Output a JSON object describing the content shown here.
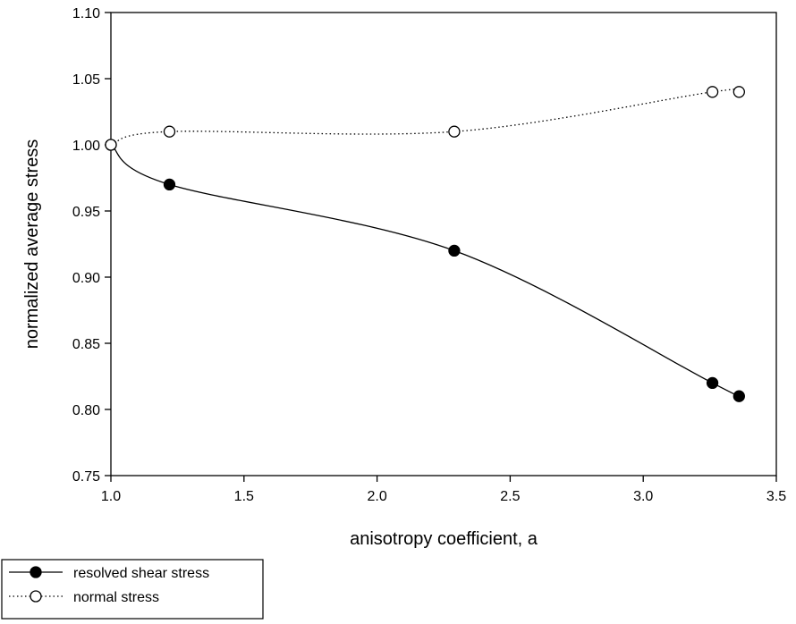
{
  "chart_data": {
    "type": "line",
    "title": "",
    "xlabel": "anisotropy coefficient, a",
    "ylabel": "normalized average stress",
    "xlim": [
      1.0,
      3.5
    ],
    "ylim": [
      0.75,
      1.1
    ],
    "xticks": [
      "1.0",
      "1.5",
      "2.0",
      "2.5",
      "3.0",
      "3.5"
    ],
    "yticks": [
      "0.75",
      "0.80",
      "0.85",
      "0.90",
      "0.95",
      "1.00",
      "1.05",
      "1.10"
    ],
    "grid": false,
    "legend_position": "bottom-left, below plot",
    "series": [
      {
        "name": "resolved shear stress",
        "line_style": "solid",
        "marker": "filled-circle",
        "color": "#000000",
        "x": [
          1.0,
          1.22,
          2.29,
          3.26,
          3.36
        ],
        "y": [
          1.0,
          0.97,
          0.92,
          0.82,
          0.81
        ]
      },
      {
        "name": "normal stress",
        "line_style": "dotted",
        "marker": "open-circle",
        "color": "#000000",
        "x": [
          1.0,
          1.22,
          2.29,
          3.26,
          3.36
        ],
        "y": [
          1.0,
          1.01,
          1.01,
          1.04,
          1.04
        ]
      }
    ]
  }
}
